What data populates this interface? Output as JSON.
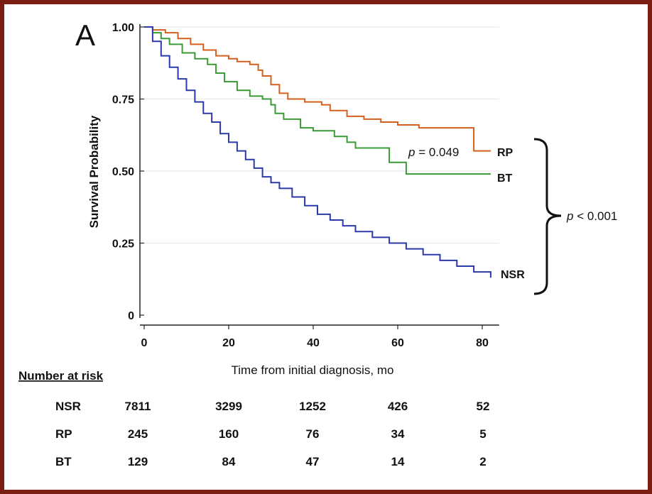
{
  "chart_data": {
    "type": "line",
    "panel_label": "A",
    "xlabel": "Time from initial diagnosis, mo",
    "ylabel": "Survival Probability",
    "xlim": [
      0,
      84
    ],
    "ylim": [
      0,
      1.0
    ],
    "x_ticks": [
      0,
      20,
      40,
      60,
      80
    ],
    "x_tick_labels": [
      "0",
      "20",
      "40",
      "60",
      "80"
    ],
    "y_ticks": [
      0,
      0.25,
      0.5,
      0.75,
      1.0
    ],
    "y_tick_labels": [
      "0",
      "0.25",
      "0.50",
      "0.75",
      "1.00"
    ],
    "grid": true,
    "series": [
      {
        "name": "RP",
        "color": "#d4601f",
        "points": [
          [
            0,
            1.0
          ],
          [
            2,
            0.99
          ],
          [
            5,
            0.98
          ],
          [
            8,
            0.96
          ],
          [
            11,
            0.94
          ],
          [
            14,
            0.92
          ],
          [
            17,
            0.9
          ],
          [
            20,
            0.89
          ],
          [
            22,
            0.88
          ],
          [
            25,
            0.87
          ],
          [
            27,
            0.85
          ],
          [
            28,
            0.83
          ],
          [
            30,
            0.8
          ],
          [
            32,
            0.77
          ],
          [
            34,
            0.75
          ],
          [
            38,
            0.74
          ],
          [
            42,
            0.73
          ],
          [
            44,
            0.71
          ],
          [
            48,
            0.69
          ],
          [
            52,
            0.68
          ],
          [
            56,
            0.67
          ],
          [
            60,
            0.66
          ],
          [
            65,
            0.65
          ],
          [
            70,
            0.65
          ],
          [
            78,
            0.65
          ],
          [
            78,
            0.57
          ],
          [
            82,
            0.57
          ]
        ]
      },
      {
        "name": "BT",
        "color": "#3a9a35",
        "points": [
          [
            0,
            1.0
          ],
          [
            2,
            0.98
          ],
          [
            4,
            0.96
          ],
          [
            6,
            0.94
          ],
          [
            9,
            0.91
          ],
          [
            12,
            0.89
          ],
          [
            15,
            0.87
          ],
          [
            17,
            0.84
          ],
          [
            19,
            0.81
          ],
          [
            22,
            0.78
          ],
          [
            25,
            0.76
          ],
          [
            28,
            0.75
          ],
          [
            30,
            0.73
          ],
          [
            31,
            0.7
          ],
          [
            33,
            0.68
          ],
          [
            37,
            0.65
          ],
          [
            40,
            0.64
          ],
          [
            45,
            0.62
          ],
          [
            48,
            0.6
          ],
          [
            50,
            0.58
          ],
          [
            54,
            0.58
          ],
          [
            58,
            0.53
          ],
          [
            62,
            0.49
          ],
          [
            70,
            0.49
          ],
          [
            82,
            0.49
          ]
        ]
      },
      {
        "name": "NSR",
        "color": "#2b3aa8",
        "points": [
          [
            0,
            1.0
          ],
          [
            2,
            0.95
          ],
          [
            4,
            0.9
          ],
          [
            6,
            0.86
          ],
          [
            8,
            0.82
          ],
          [
            10,
            0.78
          ],
          [
            12,
            0.74
          ],
          [
            14,
            0.7
          ],
          [
            16,
            0.67
          ],
          [
            18,
            0.63
          ],
          [
            20,
            0.6
          ],
          [
            22,
            0.57
          ],
          [
            24,
            0.54
          ],
          [
            26,
            0.51
          ],
          [
            28,
            0.48
          ],
          [
            30,
            0.46
          ],
          [
            32,
            0.44
          ],
          [
            35,
            0.41
          ],
          [
            38,
            0.38
          ],
          [
            41,
            0.35
          ],
          [
            44,
            0.33
          ],
          [
            47,
            0.31
          ],
          [
            50,
            0.29
          ],
          [
            54,
            0.27
          ],
          [
            58,
            0.25
          ],
          [
            62,
            0.23
          ],
          [
            66,
            0.21
          ],
          [
            70,
            0.19
          ],
          [
            74,
            0.17
          ],
          [
            78,
            0.15
          ],
          [
            82,
            0.13
          ]
        ]
      }
    ],
    "series_labels": [
      "RP",
      "BT",
      "NSR"
    ],
    "annotations": {
      "p_rp_bt_prefix": "p",
      "p_rp_bt_value": " = 0.049",
      "p_vs_nsr_prefix": "p",
      "p_vs_nsr_value": " < 0.001"
    },
    "risk_table": {
      "title": "Number at risk",
      "time_points": [
        0,
        20,
        40,
        60,
        80
      ],
      "rows": [
        {
          "group": "NSR",
          "values": [
            "7811",
            "3299",
            "1252",
            "426",
            "52"
          ]
        },
        {
          "group": "RP",
          "values": [
            "245",
            "160",
            "76",
            "34",
            "5"
          ]
        },
        {
          "group": "BT",
          "values": [
            "129",
            "84",
            "47",
            "14",
            "2"
          ]
        }
      ]
    }
  }
}
